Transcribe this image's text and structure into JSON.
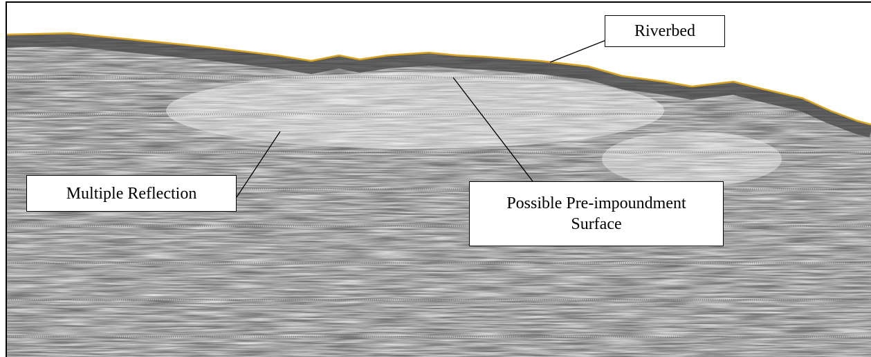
{
  "annotations": {
    "riverbed": "Riverbed",
    "multiple_reflection": "Multiple Reflection",
    "pre_impoundment": [
      "Possible Pre-impoundment",
      "Surface"
    ]
  }
}
